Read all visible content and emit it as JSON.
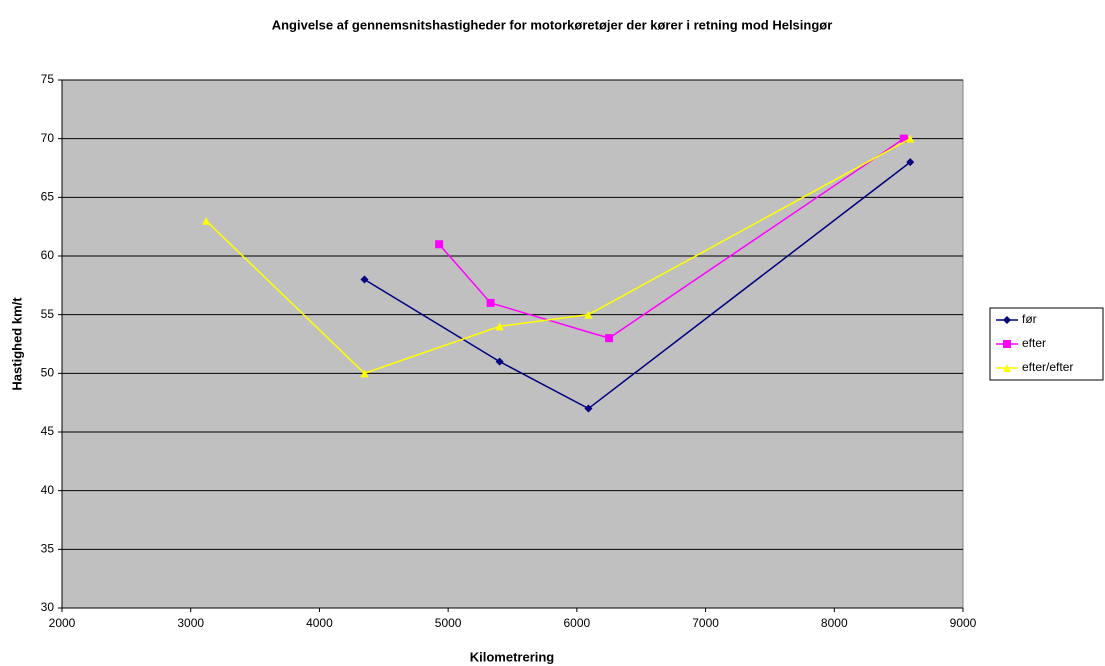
{
  "chart_data": {
    "type": "line",
    "title": "Angivelse af gennemsnitshastigheder for motorkøretøjer der kører i retning mod Helsingør",
    "xlabel": "Kilometrering",
    "ylabel": "Hastighed km/t",
    "series": [
      {
        "name": "før",
        "color": "#000080",
        "marker": "diamond",
        "x": [
          4350,
          5400,
          6090,
          8590
        ],
        "values": [
          58,
          51,
          47,
          68
        ]
      },
      {
        "name": "efter",
        "color": "#ff00ff",
        "marker": "square",
        "x": [
          4930,
          5330,
          6250,
          8540
        ],
        "values": [
          61,
          56,
          53,
          70
        ]
      },
      {
        "name": "efter/efter",
        "color": "#ffff00",
        "marker": "triangle",
        "x": [
          3120,
          4350,
          5400,
          6090,
          8590
        ],
        "values": [
          63,
          50,
          54,
          55,
          70
        ]
      }
    ],
    "xlim": [
      2000,
      9000
    ],
    "xticks": [
      2000,
      3000,
      4000,
      5000,
      6000,
      7000,
      8000,
      9000
    ],
    "ylim": [
      30,
      75
    ],
    "yticks": [
      30,
      35,
      40,
      45,
      50,
      55,
      60,
      65,
      70,
      75
    ],
    "grid": true,
    "legend": "right"
  }
}
